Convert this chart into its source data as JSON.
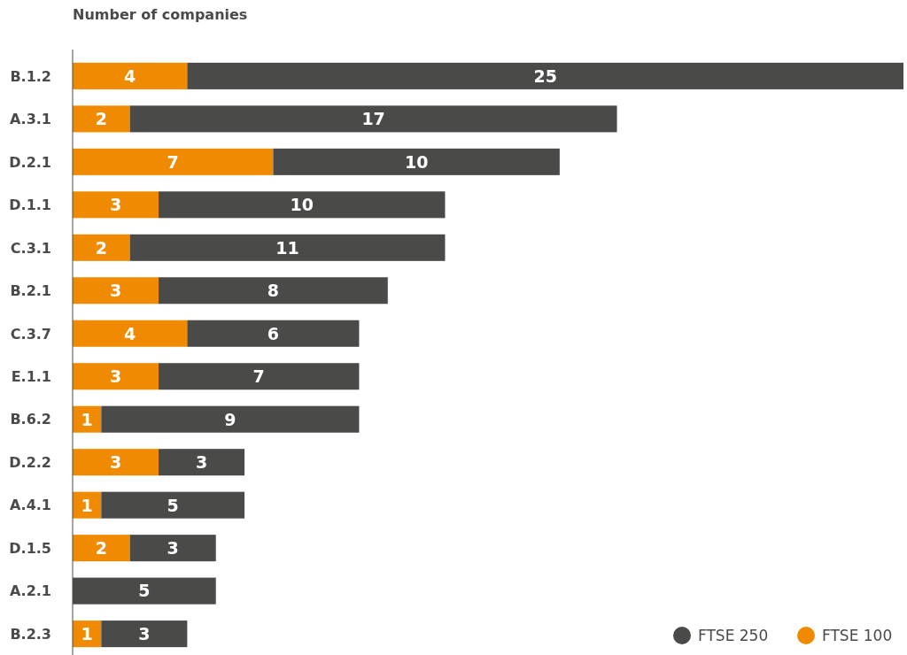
{
  "chart_data": {
    "type": "bar",
    "orientation": "horizontal",
    "stacked": true,
    "title": "Number of companies",
    "categories": [
      "B.1.2",
      "A.3.1",
      "D.2.1",
      "D.1.1",
      "C.3.1",
      "B.2.1",
      "C.3.7",
      "E.1.1",
      "B.6.2",
      "D.2.2",
      "A.4.1",
      "D.1.5",
      "A.2.1",
      "B.2.3"
    ],
    "series": [
      {
        "name": "FTSE 100",
        "color": "#f08a00",
        "values": [
          4,
          2,
          7,
          3,
          2,
          3,
          4,
          3,
          1,
          3,
          1,
          2,
          null,
          1
        ]
      },
      {
        "name": "FTSE 250",
        "color": "#4a4a49",
        "values": [
          25,
          17,
          10,
          10,
          11,
          8,
          6,
          7,
          9,
          3,
          5,
          3,
          5,
          3
        ]
      }
    ],
    "data_labels": true,
    "legend": "bottom right"
  }
}
